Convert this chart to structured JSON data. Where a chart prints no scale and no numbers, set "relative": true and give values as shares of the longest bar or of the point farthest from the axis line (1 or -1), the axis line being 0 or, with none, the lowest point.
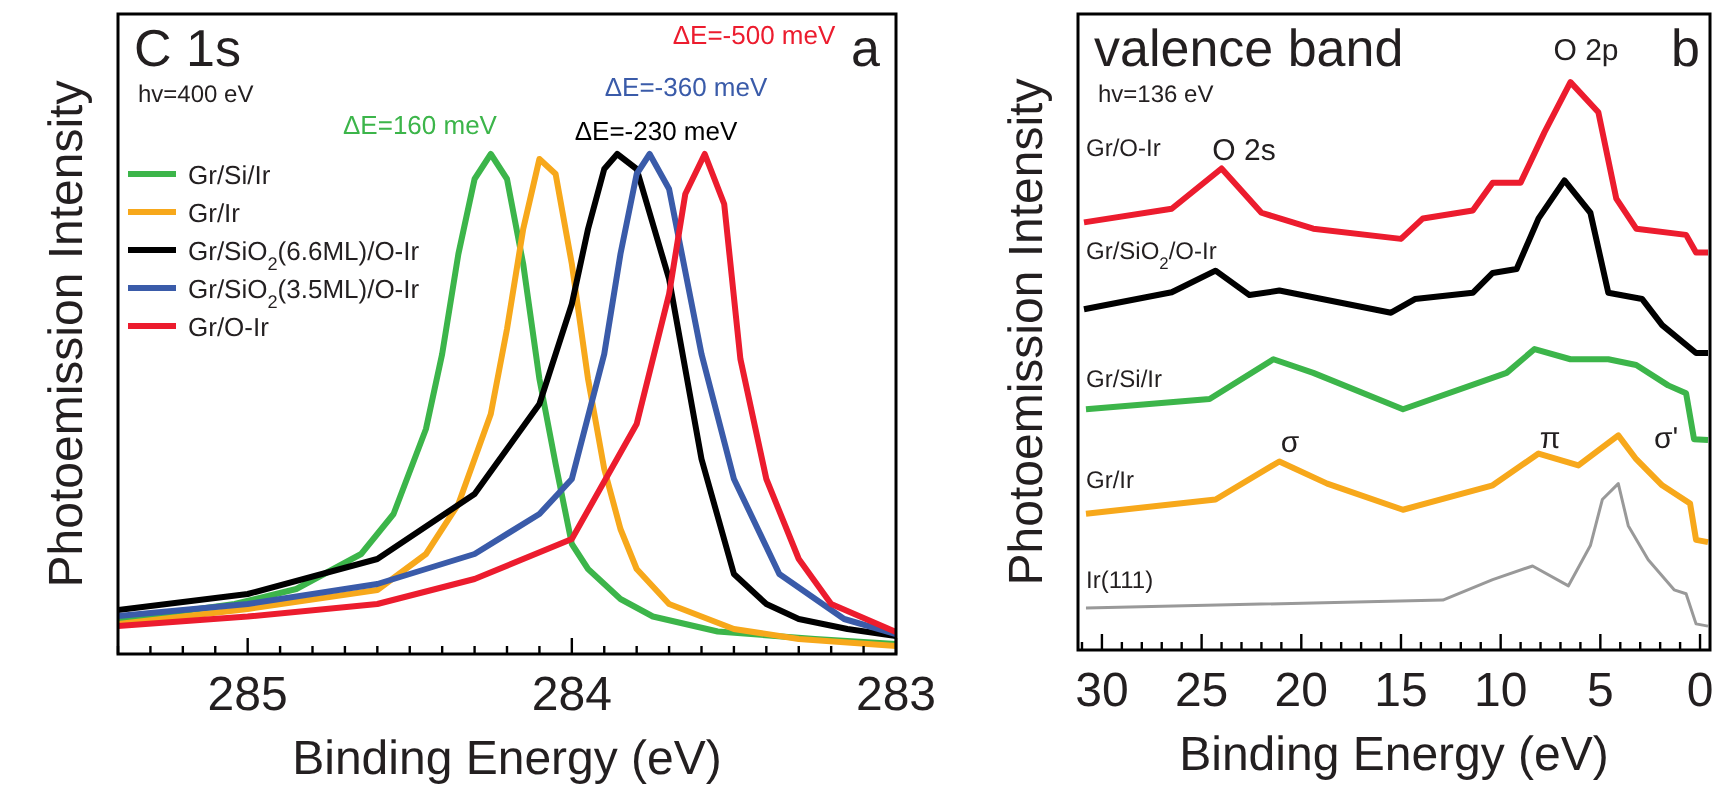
{
  "chart_data": [
    {
      "type": "line",
      "title": "C 1s",
      "subtitle": "hv=400 eV",
      "xlabel": "Binding Energy (eV)",
      "ylabel": "Photoemission Intensity",
      "relative": true,
      "legend": "top left",
      "xlim": [
        285.4,
        283
      ],
      "xticks": [
        {
          "value": 285.4,
          "label": null
        },
        {
          "value": 285.3,
          "label": null
        },
        {
          "value": 285.2,
          "label": null
        },
        {
          "value": 285.1,
          "label": null
        },
        285,
        {
          "value": 284.9,
          "label": null
        },
        {
          "value": 284.8,
          "label": null
        },
        {
          "value": 284.7,
          "label": null
        },
        {
          "value": 284.6,
          "label": null
        },
        {
          "value": 284.5,
          "label": null
        },
        {
          "value": 284.4,
          "label": null
        },
        {
          "value": 284.3,
          "label": null
        },
        {
          "value": 284.2,
          "label": null
        },
        {
          "value": 284.1,
          "label": null
        },
        284,
        {
          "value": 283.9,
          "label": null
        },
        {
          "value": 283.8,
          "label": null
        },
        {
          "value": 283.7,
          "label": null
        },
        {
          "value": 283.6,
          "label": null
        },
        {
          "value": 283.5,
          "label": null
        },
        {
          "value": 283.4,
          "label": null
        },
        {
          "value": 283.3,
          "label": null
        },
        {
          "value": 283.2,
          "label": null
        },
        {
          "value": 283.1,
          "label": null
        },
        283
      ],
      "annotations": [
        "a",
        "ΔE=160 meV",
        "ΔE=-230 meV",
        "ΔE=-360 meV",
        "ΔE=-500 meV"
      ],
      "series": [
        {
          "name": "Gr/Si/Ir",
          "color": "#3cb54a",
          "x": [
            285.4,
            285.04,
            284.85,
            284.65,
            284.55,
            284.45,
            284.4,
            284.35,
            284.3,
            284.25,
            284.2,
            284.15,
            284.1,
            284.05,
            284.0,
            283.95,
            283.85,
            283.75,
            283.55,
            283.25,
            283.0
          ],
          "values": [
            0.068,
            0.1,
            0.13,
            0.2,
            0.28,
            0.45,
            0.6,
            0.8,
            0.95,
            1.0,
            0.95,
            0.78,
            0.55,
            0.38,
            0.22,
            0.17,
            0.11,
            0.075,
            0.045,
            0.03,
            0.02
          ]
        },
        {
          "name": "Gr/Ir",
          "color": "#f7a81b",
          "x": [
            285.4,
            285.0,
            284.6,
            284.45,
            284.35,
            284.25,
            284.2,
            284.15,
            284.1,
            284.05,
            284.0,
            283.95,
            283.9,
            283.85,
            283.8,
            283.7,
            283.5,
            283.3,
            283.0
          ],
          "values": [
            0.06,
            0.09,
            0.128,
            0.2,
            0.3,
            0.48,
            0.65,
            0.85,
            0.99,
            0.96,
            0.78,
            0.55,
            0.37,
            0.25,
            0.17,
            0.1,
            0.05,
            0.03,
            0.016
          ]
        },
        {
          "name": "Gr/SiO$_{2}$(6.6ML)/O-Ir",
          "color": "#000000",
          "x": [
            285.4,
            285.0,
            284.6,
            284.3,
            284.1,
            284.0,
            283.95,
            283.9,
            283.86,
            283.8,
            283.7,
            283.6,
            283.5,
            283.4,
            283.3,
            283.15,
            283.0
          ],
          "values": [
            0.088,
            0.12,
            0.19,
            0.32,
            0.5,
            0.7,
            0.85,
            0.97,
            1.0,
            0.97,
            0.75,
            0.39,
            0.16,
            0.1,
            0.07,
            0.05,
            0.036
          ]
        },
        {
          "name": "Gr/SiO$_{2}$(3.5ML)/O-Ir",
          "color": "#3a5ba9",
          "x": [
            285.4,
            285.0,
            284.6,
            284.3,
            284.1,
            284.0,
            283.9,
            283.85,
            283.8,
            283.76,
            283.7,
            283.6,
            283.5,
            283.36,
            283.16,
            283.0
          ],
          "values": [
            0.076,
            0.1,
            0.14,
            0.2,
            0.28,
            0.35,
            0.6,
            0.8,
            0.96,
            1.0,
            0.93,
            0.6,
            0.35,
            0.16,
            0.07,
            0.04
          ]
        },
        {
          "name": "Gr/O-Ir",
          "color": "#ec1c2e",
          "x": [
            285.4,
            285.0,
            284.6,
            284.3,
            284.0,
            283.8,
            283.7,
            283.65,
            283.59,
            283.53,
            283.48,
            283.4,
            283.3,
            283.2,
            283.0
          ],
          "values": [
            0.056,
            0.075,
            0.1,
            0.15,
            0.23,
            0.46,
            0.72,
            0.92,
            1.0,
            0.9,
            0.59,
            0.35,
            0.19,
            0.1,
            0.044
          ]
        }
      ]
    },
    {
      "type": "line",
      "title": "valence band",
      "subtitle": "hv=136 eV",
      "xlabel": "Binding Energy (eV)",
      "ylabel": "Photoemission Intensity",
      "relative": true,
      "legend": false,
      "xlim": [
        31.2,
        -0.5
      ],
      "xticks": [
        {
          "value": 31,
          "label": null
        },
        30,
        {
          "value": 29,
          "label": null
        },
        {
          "value": 28,
          "label": null
        },
        {
          "value": 27,
          "label": null
        },
        {
          "value": 26,
          "label": null
        },
        25,
        {
          "value": 24,
          "label": null
        },
        {
          "value": 23,
          "label": null
        },
        {
          "value": 22,
          "label": null
        },
        {
          "value": 21,
          "label": null
        },
        20,
        {
          "value": 19,
          "label": null
        },
        {
          "value": 18,
          "label": null
        },
        {
          "value": 17,
          "label": null
        },
        {
          "value": 16,
          "label": null
        },
        15,
        {
          "value": 14,
          "label": null
        },
        {
          "value": 13,
          "label": null
        },
        {
          "value": 12,
          "label": null
        },
        {
          "value": 11,
          "label": null
        },
        10,
        {
          "value": 9,
          "label": null
        },
        {
          "value": 8,
          "label": null
        },
        {
          "value": 7,
          "label": null
        },
        {
          "value": 6,
          "label": null
        },
        5,
        {
          "value": 4,
          "label": null
        },
        {
          "value": 3,
          "label": null
        },
        {
          "value": 2,
          "label": null
        },
        {
          "value": 1,
          "label": null
        },
        0
      ],
      "annotations": [
        "b",
        "O 2s",
        "O 2p",
        "σ",
        "π",
        "σ'"
      ],
      "series": [
        {
          "name": "Gr/O-Ir",
          "color": "#ec1c2e",
          "x": [
            30.9,
            26.5,
            24.0,
            22.0,
            19.4,
            15.0,
            13.9,
            11.4,
            10.4,
            9.0,
            7.8,
            6.5,
            5.1,
            4.2,
            3.2,
            0.7,
            0.2,
            -0.4
          ],
          "values": [
            0.753,
            0.777,
            0.848,
            0.77,
            0.742,
            0.724,
            0.76,
            0.774,
            0.823,
            0.823,
            0.912,
            1.0,
            0.947,
            0.795,
            0.742,
            0.731,
            0.7,
            0.7
          ]
        },
        {
          "name": "Gr/SiO$_{2}$/O-Ir",
          "color": "#000000",
          "x": [
            30.9,
            26.5,
            24.3,
            22.6,
            21.1,
            15.5,
            14.3,
            11.4,
            10.4,
            9.2,
            8.1,
            6.8,
            5.5,
            4.6,
            2.9,
            1.9,
            0.2,
            -0.4
          ],
          "values": [
            0.6,
            0.63,
            0.668,
            0.625,
            0.633,
            0.594,
            0.618,
            0.629,
            0.664,
            0.671,
            0.76,
            0.827,
            0.77,
            0.629,
            0.618,
            0.572,
            0.523,
            0.523
          ]
        },
        {
          "name": "Gr/Si/Ir",
          "color": "#3cb54a",
          "x": [
            30.8,
            24.6,
            21.4,
            19.4,
            14.9,
            9.7,
            8.3,
            6.5,
            4.6,
            3.2,
            1.6,
            0.7,
            0.3,
            -0.4
          ],
          "values": [
            0.424,
            0.442,
            0.512,
            0.488,
            0.424,
            0.488,
            0.53,
            0.512,
            0.512,
            0.502,
            0.466,
            0.452,
            0.371,
            0.37
          ]
        },
        {
          "name": "Gr/Ir",
          "color": "#f7a81b",
          "x": [
            30.8,
            24.3,
            21.1,
            18.7,
            14.9,
            10.4,
            8.1,
            6.1,
            4.1,
            3.2,
            1.9,
            0.5,
            0.2,
            -0.4
          ],
          "values": [
            0.24,
            0.265,
            0.332,
            0.293,
            0.247,
            0.29,
            0.346,
            0.325,
            0.378,
            0.336,
            0.29,
            0.258,
            0.194,
            0.19
          ]
        },
        {
          "name": "Ir(111)",
          "color": "#999999",
          "x": [
            30.8,
            12.9,
            10.4,
            8.4,
            6.6,
            5.5,
            4.9,
            4.1,
            3.6,
            2.6,
            1.3,
            0.7,
            0.2,
            -0.4
          ],
          "values": [
            0.074,
            0.088,
            0.124,
            0.148,
            0.113,
            0.184,
            0.265,
            0.293,
            0.219,
            0.159,
            0.106,
            0.099,
            0.046,
            0.042
          ]
        }
      ]
    }
  ]
}
